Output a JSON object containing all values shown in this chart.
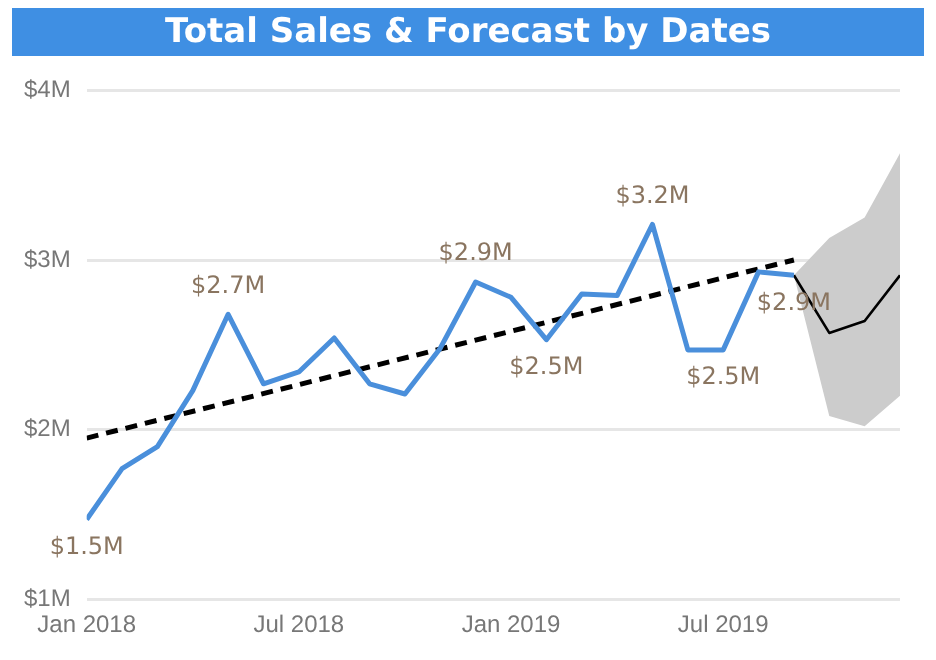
{
  "chart_data": {
    "type": "line",
    "title": "Total Sales & Forecast by Dates",
    "x": [
      "2018-01",
      "2018-02",
      "2018-03",
      "2018-04",
      "2018-05",
      "2018-06",
      "2018-07",
      "2018-08",
      "2018-09",
      "2018-10",
      "2018-11",
      "2018-12",
      "2019-01",
      "2019-02",
      "2019-03",
      "2019-04",
      "2019-05",
      "2019-06",
      "2019-07",
      "2019-08",
      "2019-09"
    ],
    "series": [
      {
        "color": "#4a8fdb",
        "values": [
          1.47,
          1.77,
          1.9,
          2.23,
          2.68,
          2.27,
          2.34,
          2.54,
          2.27,
          2.21,
          2.48,
          2.87,
          2.78,
          2.53,
          2.8,
          2.79,
          3.21,
          2.47,
          2.47,
          2.93,
          2.91
        ],
        "value_labels": [
          "$1.5M",
          null,
          null,
          null,
          "$2.7M",
          null,
          null,
          null,
          null,
          null,
          null,
          "$2.9M",
          null,
          "$2.5M",
          null,
          null,
          "$3.2M",
          null,
          "$2.5M",
          null,
          "$2.9M"
        ]
      },
      {
        "color": "#000000",
        "x": [
          "2019-09",
          "2019-10",
          "2019-11",
          "2019-12"
        ],
        "values": [
          2.91,
          2.57,
          2.64,
          2.91
        ],
        "lower": [
          2.91,
          2.08,
          2.02,
          2.2
        ],
        "upper": [
          2.91,
          3.13,
          3.25,
          3.63
        ]
      },
      {
        "color": "#000000",
        "line_style": "dashed",
        "x": [
          "2018-01",
          "2019-09"
        ],
        "values": [
          1.95,
          3.0
        ]
      }
    ],
    "xlim": [
      "2018-01",
      "2019-12"
    ],
    "xticks": [
      {
        "value": "2018-01",
        "label": "Jan 2018"
      },
      {
        "value": "2018-07",
        "label": "Jul 2018"
      },
      {
        "value": "2019-01",
        "label": "Jan 2019"
      },
      {
        "value": "2019-07",
        "label": "Jul 2019"
      }
    ],
    "ylim": [
      1,
      4
    ],
    "yticks": [
      {
        "value": 1,
        "label": "$1M"
      },
      {
        "value": 2,
        "label": "$2M"
      },
      {
        "value": 3,
        "label": "$3M"
      },
      {
        "value": 4,
        "label": "$4M"
      }
    ],
    "grid": "y",
    "marker": "none"
  }
}
